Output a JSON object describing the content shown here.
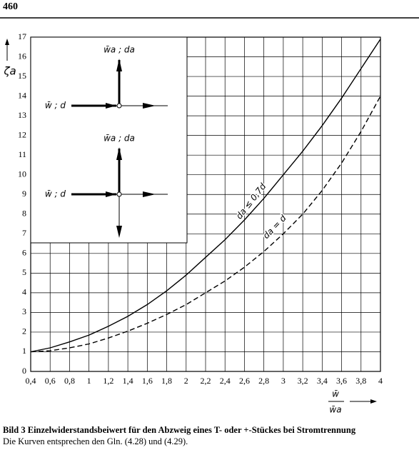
{
  "page_number": "460",
  "chart_data": {
    "type": "line",
    "y_label": "ζa",
    "x_label_top": "w̄",
    "x_label_bottom": "w̄a",
    "x": [
      0.4,
      0.6,
      0.8,
      1.0,
      1.2,
      1.4,
      1.6,
      1.8,
      2.0,
      2.2,
      2.4,
      2.6,
      2.8,
      3.0,
      3.2,
      3.4,
      3.6,
      3.8,
      4.0
    ],
    "series": [
      {
        "name": "da ≤ 0,7d",
        "color": "#000000",
        "dashed": false,
        "values": [
          1.0,
          1.2,
          1.5,
          1.85,
          2.3,
          2.8,
          3.4,
          4.1,
          4.9,
          5.8,
          6.7,
          7.7,
          8.8,
          10.0,
          11.2,
          12.5,
          13.9,
          15.4,
          16.9
        ]
      },
      {
        "name": "da = d",
        "color": "#000000",
        "dashed": true,
        "values": [
          1.0,
          1.05,
          1.2,
          1.4,
          1.7,
          2.05,
          2.45,
          2.9,
          3.4,
          4.0,
          4.6,
          5.3,
          6.1,
          7.0,
          8.0,
          9.2,
          10.6,
          12.2,
          14.0
        ]
      }
    ],
    "xlim": [
      0.4,
      4
    ],
    "ylim": [
      0,
      17
    ],
    "xticks": [
      {
        "value": 0.4,
        "label": "0,4"
      },
      {
        "value": 0.6,
        "label": "0,6"
      },
      {
        "value": 0.8,
        "label": "0,8"
      },
      1,
      {
        "value": 1.2,
        "label": "1,2"
      },
      {
        "value": 1.4,
        "label": "1,4"
      },
      {
        "value": 1.6,
        "label": "1,6"
      },
      {
        "value": 1.8,
        "label": "1,8"
      },
      2,
      {
        "value": 2.2,
        "label": "2,2"
      },
      {
        "value": 2.4,
        "label": "2,4"
      },
      {
        "value": 2.6,
        "label": "2,6"
      },
      {
        "value": 2.8,
        "label": "2,8"
      },
      3,
      {
        "value": 3.2,
        "label": "3,2"
      },
      {
        "value": 3.4,
        "label": "3,4"
      },
      {
        "value": 3.6,
        "label": "3,6"
      },
      {
        "value": 3.8,
        "label": "3,8"
      },
      4
    ],
    "yticks": [
      0,
      1,
      2,
      3,
      4,
      5,
      6,
      7,
      8,
      9,
      10,
      11,
      12,
      13,
      14,
      15,
      16,
      17
    ],
    "grid": true,
    "inset_labels": [
      "w̄a ; da",
      "w̄ ; d",
      "w̄a ; da",
      "w̄ ; d"
    ]
  },
  "caption": {
    "title": "Bild 3 Einzelwiderstandsbeiwert für den Abzweig eines T- oder +-Stückes bei Stromtrennung",
    "text": "Die Kurven entsprechen den Gln. (4.28) und (4.29)."
  }
}
